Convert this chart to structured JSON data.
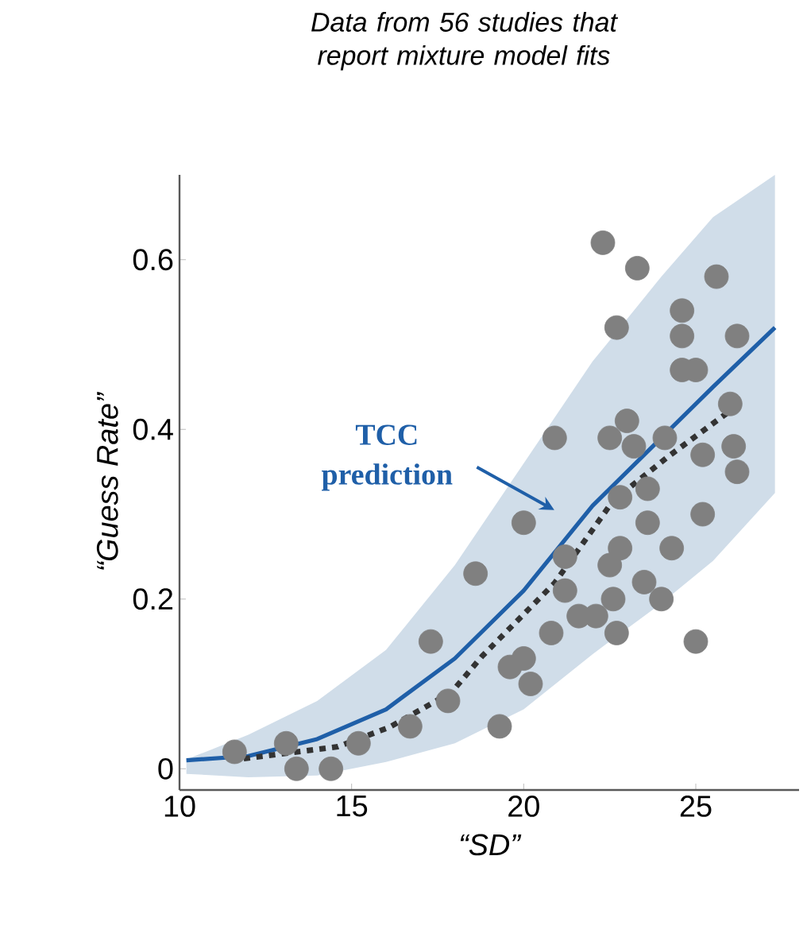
{
  "chart_data": {
    "type": "scatter",
    "title": "Data from 56 studies that report mixture model fits",
    "xlabel": "“SD”",
    "ylabel": "“Guess Rate”",
    "xlim": [
      10,
      28
    ],
    "ylim": [
      -0.025,
      0.7
    ],
    "xticks": [
      10,
      15,
      20,
      25
    ],
    "yticks": [
      0,
      0.2,
      0.4,
      0.6
    ],
    "grid": false,
    "annotations": [
      "TCC prediction"
    ],
    "series": [
      {
        "color": "#808080",
        "marker": "circle",
        "x": [
          11.6,
          13.1,
          13.4,
          14.4,
          15.2,
          16.7,
          17.8,
          17.3,
          18.6,
          22.3,
          23.3,
          25.6,
          22.7,
          24.6,
          24.6,
          26.2,
          24.6,
          25.0,
          20.9,
          23.0,
          22.5,
          24.1,
          23.2,
          26.0,
          26.1,
          25.2,
          26.2,
          23.6,
          22.8,
          25.2,
          23.6,
          20.0,
          24.3,
          22.8,
          22.5,
          21.2,
          21.2,
          22.6,
          23.5,
          24.0,
          21.6,
          22.1,
          22.7,
          20.8,
          20.0,
          19.6,
          20.2,
          19.3,
          25.0
        ],
        "values": [
          0.02,
          0.03,
          0.0,
          0.0,
          0.03,
          0.05,
          0.08,
          0.15,
          0.23,
          0.62,
          0.59,
          0.58,
          0.52,
          0.54,
          0.51,
          0.51,
          0.47,
          0.47,
          0.39,
          0.41,
          0.39,
          0.39,
          0.38,
          0.43,
          0.38,
          0.37,
          0.35,
          0.33,
          0.32,
          0.3,
          0.29,
          0.29,
          0.26,
          0.26,
          0.24,
          0.25,
          0.21,
          0.2,
          0.22,
          0.2,
          0.18,
          0.18,
          0.16,
          0.16,
          0.13,
          0.12,
          0.1,
          0.05,
          0.15
        ]
      },
      {
        "type": "line",
        "color": "#1f5fa8",
        "marker": "none",
        "line_style": "solid",
        "x": [
          10.2,
          12,
          14,
          16,
          18,
          20,
          22,
          24,
          25.5,
          27.3
        ],
        "values": [
          0.01,
          0.015,
          0.035,
          0.07,
          0.13,
          0.21,
          0.31,
          0.39,
          0.45,
          0.52
        ],
        "lower": [
          -0.006,
          -0.01,
          -0.008,
          0.008,
          0.03,
          0.07,
          0.135,
          0.195,
          0.245,
          0.325
        ],
        "upper": [
          0.011,
          0.04,
          0.08,
          0.14,
          0.24,
          0.36,
          0.48,
          0.58,
          0.65,
          0.7
        ]
      },
      {
        "type": "line",
        "color": "#333333",
        "marker": "none",
        "line_style": "dotted",
        "x": [
          11.5,
          14.6,
          16.1,
          17.9,
          18.8,
          20.9,
          22.6,
          24.2,
          26.0
        ],
        "values": [
          0.01,
          0.026,
          0.049,
          0.09,
          0.133,
          0.219,
          0.316,
          0.368,
          0.422
        ]
      }
    ]
  }
}
